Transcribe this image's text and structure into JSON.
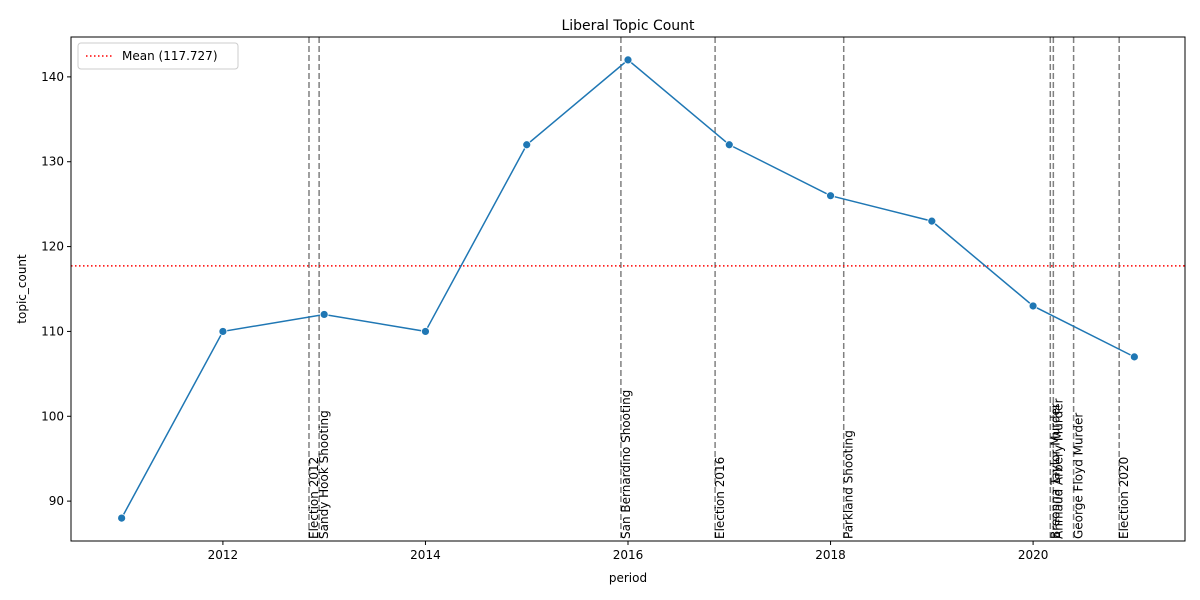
{
  "chart_data": {
    "type": "line",
    "title": "Liberal Topic Count",
    "xlabel": "period",
    "ylabel": "topic_count",
    "xlim": [
      2010.5,
      2021.5
    ],
    "ylim": [
      85.3,
      144.7
    ],
    "xticks": [
      2012,
      2014,
      2016,
      2018,
      2020
    ],
    "yticks": [
      90,
      100,
      110,
      120,
      130,
      140
    ],
    "grid": false,
    "legend_position": "upper-left",
    "series": [
      {
        "color": "#1f77b4",
        "x": [
          2011,
          2012,
          2013,
          2014,
          2015,
          2016,
          2017,
          2018,
          2019,
          2020,
          2021
        ],
        "y": [
          88,
          110,
          112,
          110,
          132,
          142,
          132,
          126,
          123,
          113,
          107
        ]
      }
    ],
    "mean_line": {
      "value": 117.727,
      "label": "Mean (117.727)",
      "color": "#ff0000",
      "style": "dotted"
    },
    "events": [
      {
        "x": 2012.85,
        "label": "Election 2012"
      },
      {
        "x": 2012.95,
        "label": "Sandy Hook Shooting"
      },
      {
        "x": 2015.93,
        "label": "San Bernardino Shooting"
      },
      {
        "x": 2016.86,
        "label": "Election 2016"
      },
      {
        "x": 2018.13,
        "label": "Parkland Shooting"
      },
      {
        "x": 2020.17,
        "label": "Breonna Taylor Murder"
      },
      {
        "x": 2020.2,
        "label": "Ahmaud Arbery Murder"
      },
      {
        "x": 2020.4,
        "label": "George Floyd Murder"
      },
      {
        "x": 2020.85,
        "label": "Election 2020"
      }
    ],
    "event_line_color": "#808080"
  }
}
